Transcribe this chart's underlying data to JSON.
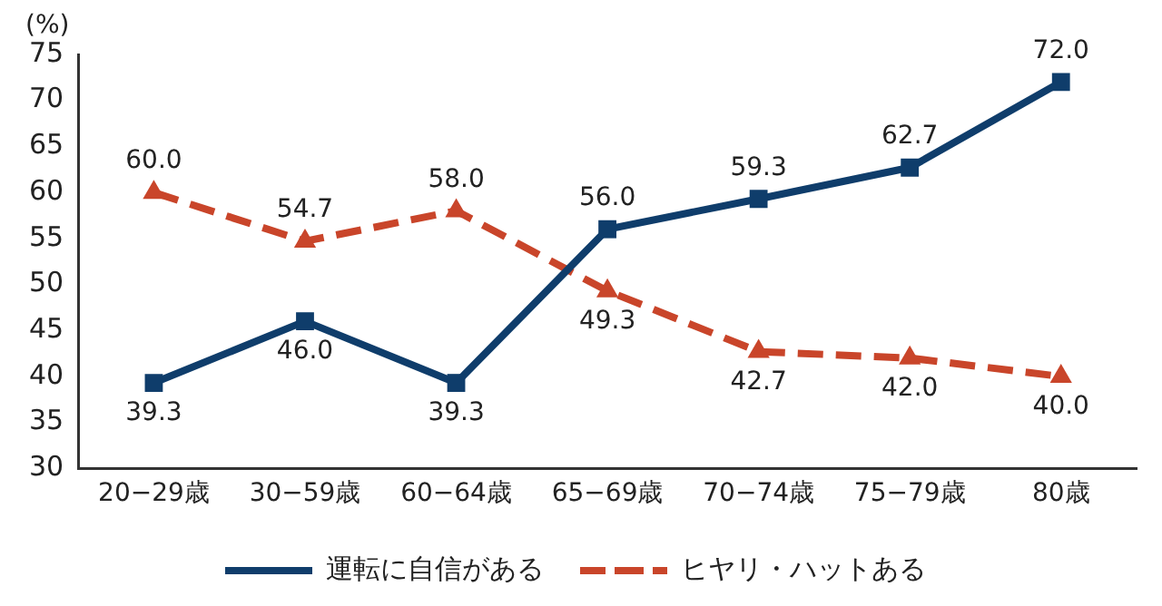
{
  "chart_data": {
    "type": "line",
    "ylabel": "(%)",
    "categories": [
      "20−29歳",
      "30−59歳",
      "60−64歳",
      "65−69歳",
      "70−74歳",
      "75−79歳",
      "80歳"
    ],
    "series": [
      {
        "name": "運転に自信がある",
        "color": "#0f3d6b",
        "marker": "square",
        "line_style": "solid",
        "values": [
          39.3,
          46.0,
          39.3,
          56.0,
          59.3,
          62.7,
          72.0
        ],
        "value_labels": [
          "39.3",
          "46.0",
          "39.3",
          "56.0",
          "59.3",
          "62.7",
          "72.0"
        ]
      },
      {
        "name": "ヒヤリ・ハットある",
        "color": "#c9452a",
        "marker": "triangle",
        "line_style": "dashed",
        "values": [
          60.0,
          54.7,
          58.0,
          49.3,
          42.7,
          42.0,
          40.0
        ],
        "value_labels": [
          "60.0",
          "54.7",
          "58.0",
          "49.3",
          "42.7",
          "42.0",
          "40.0"
        ]
      }
    ],
    "ylim": [
      30,
      75
    ],
    "yticks": [
      30,
      35,
      40,
      45,
      50,
      55,
      60,
      65,
      70,
      75
    ],
    "grid": false,
    "legend": "bottom"
  }
}
